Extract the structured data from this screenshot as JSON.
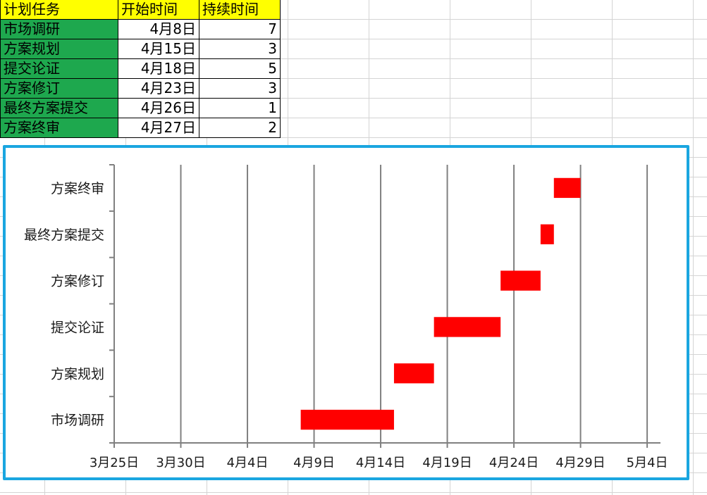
{
  "table": {
    "headers": [
      "计划任务",
      "开始时间",
      "持续时间"
    ],
    "rows": [
      {
        "task": "市场调研",
        "start": "4月8日",
        "duration": "7"
      },
      {
        "task": "方案规划",
        "start": "4月15日",
        "duration": "3"
      },
      {
        "task": "提交论证",
        "start": "4月18日",
        "duration": "5"
      },
      {
        "task": "方案修订",
        "start": "4月23日",
        "duration": "3"
      },
      {
        "task": "最终方案提交",
        "start": "4月26日",
        "duration": "1"
      },
      {
        "task": "方案终审",
        "start": "4月27日",
        "duration": "2"
      }
    ]
  },
  "colors": {
    "task_cell": "#1ea84e",
    "header_cell": "#ffff00",
    "bar": "#ff0000",
    "frame": "#1aa6e0",
    "gridline": "#808080"
  },
  "chart_data": {
    "type": "bar",
    "orientation": "horizontal",
    "stacked": true,
    "title": "",
    "xlabel": "",
    "ylabel": "",
    "categories": [
      "市场调研",
      "方案规划",
      "提交论证",
      "方案修订",
      "最终方案提交",
      "方案终审"
    ],
    "series": [
      {
        "name": "开始时间",
        "visible": false,
        "values": [
          "2000-04-08",
          "2000-04-15",
          "2000-04-18",
          "2000-04-23",
          "2000-04-26",
          "2000-04-27"
        ]
      },
      {
        "name": "持续时间",
        "color": "#ff0000",
        "values": [
          7,
          3,
          5,
          3,
          1,
          2
        ]
      }
    ],
    "xlim": [
      "2000-03-25",
      "2000-05-05"
    ],
    "x_ticks": [
      "3月25日",
      "3月30日",
      "4月4日",
      "4月9日",
      "4月14日",
      "4月19日",
      "4月24日",
      "4月29日",
      "5月4日"
    ],
    "grid": true,
    "legend": "none"
  }
}
